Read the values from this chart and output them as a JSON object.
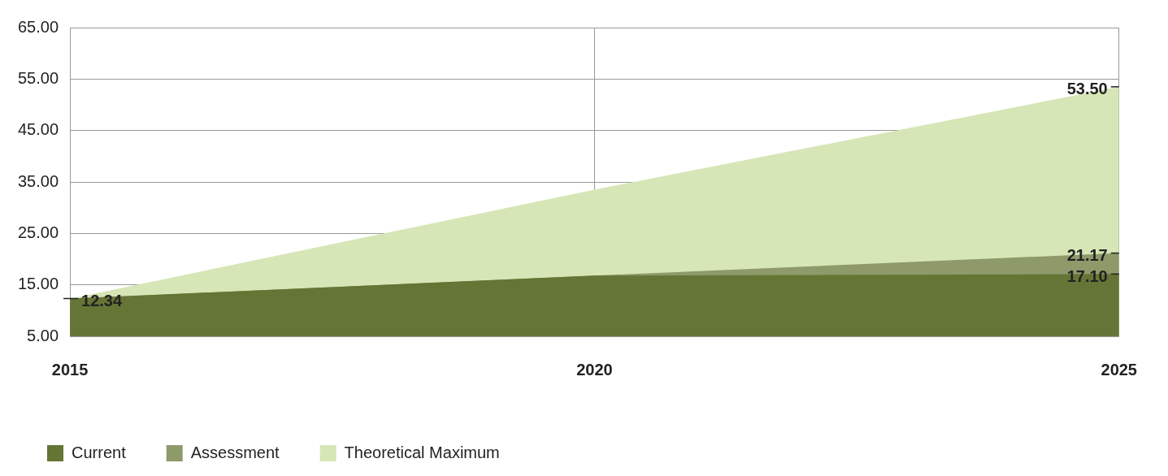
{
  "chart_data": {
    "type": "area",
    "categories": [
      "2015",
      "2020",
      "2025"
    ],
    "series": [
      {
        "name": "Current",
        "color": "#657535",
        "values": [
          12.34,
          16.8,
          17.1
        ],
        "value_labels": [
          "12.34",
          null,
          "17.10"
        ]
      },
      {
        "name": "Assessment",
        "color": "#8e9a6a",
        "values": [
          12.3,
          16.8,
          21.17
        ],
        "value_labels": [
          null,
          null,
          "21.17"
        ]
      },
      {
        "name": "Theoretical Maximum",
        "color": "#d6e6b6",
        "values": [
          12.3,
          33.5,
          53.5
        ],
        "value_labels": [
          null,
          null,
          "53.50"
        ]
      }
    ],
    "ylim": [
      5,
      65
    ],
    "yticks": [
      {
        "value": 5,
        "label": "5.00"
      },
      {
        "value": 15,
        "label": "15.00"
      },
      {
        "value": 25,
        "label": "25.00"
      },
      {
        "value": 35,
        "label": "35.00"
      },
      {
        "value": 45,
        "label": "45.00"
      },
      {
        "value": 55,
        "label": "55.00"
      },
      {
        "value": 65,
        "label": "65.00"
      }
    ],
    "grid": true,
    "legend": "bottom left"
  }
}
